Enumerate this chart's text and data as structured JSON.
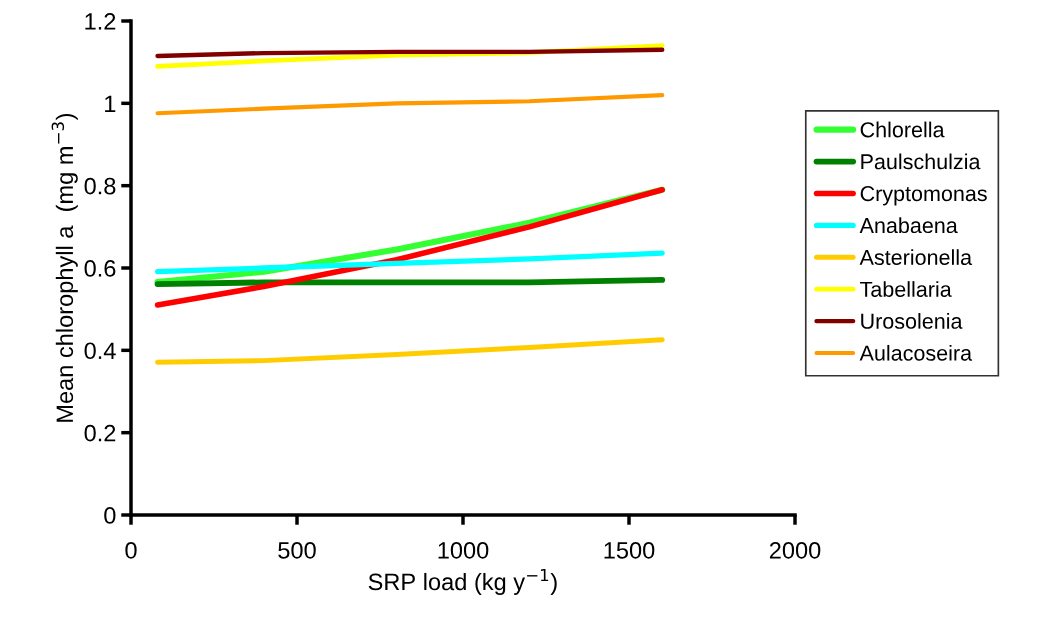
{
  "chart_data": {
    "type": "line",
    "xlabel": "SRP load (kg y$^{−1}$)",
    "ylabel": "Mean chlorophyll a  (mg m$^{−3}$)",
    "x": [
      80,
      400,
      800,
      1200,
      1600
    ],
    "series": [
      {
        "name": "Chlorella",
        "color": "#33ff33",
        "values": [
          0.566,
          0.591,
          0.645,
          0.71,
          0.79
        ]
      },
      {
        "name": "Paulschulzia",
        "color": "#008000",
        "values": [
          0.561,
          0.565,
          0.565,
          0.565,
          0.571
        ]
      },
      {
        "name": "Cryptomonas",
        "color": "#ff0000",
        "values": [
          0.51,
          0.555,
          0.62,
          0.7,
          0.79
        ]
      },
      {
        "name": "Anabaena",
        "color": "#00ffff",
        "values": [
          0.591,
          0.6,
          0.611,
          0.622,
          0.636
        ]
      },
      {
        "name": "Asterionella",
        "color": "#ffcc00",
        "values": [
          0.371,
          0.375,
          0.39,
          0.407,
          0.426
        ]
      },
      {
        "name": "Tabellaria",
        "color": "#ffff00",
        "values": [
          1.09,
          1.103,
          1.117,
          1.123,
          1.14
        ]
      },
      {
        "name": "Urosolenia",
        "color": "#800000",
        "values": [
          1.115,
          1.122,
          1.125,
          1.125,
          1.13
        ]
      },
      {
        "name": "Aulacoseira",
        "color": "#ff9900",
        "values": [
          0.976,
          0.987,
          1.0,
          1.005,
          1.02
        ]
      }
    ],
    "xlim": [
      0,
      2000
    ],
    "xticks": [
      0,
      500,
      1000,
      1500,
      2000
    ],
    "ylim": [
      0,
      1.2
    ],
    "yticks": [
      0,
      0.2,
      0.4,
      0.6,
      0.8,
      1,
      1.2
    ],
    "legend": "right",
    "grid": false,
    "marker": "none",
    "line_style": "solid"
  }
}
